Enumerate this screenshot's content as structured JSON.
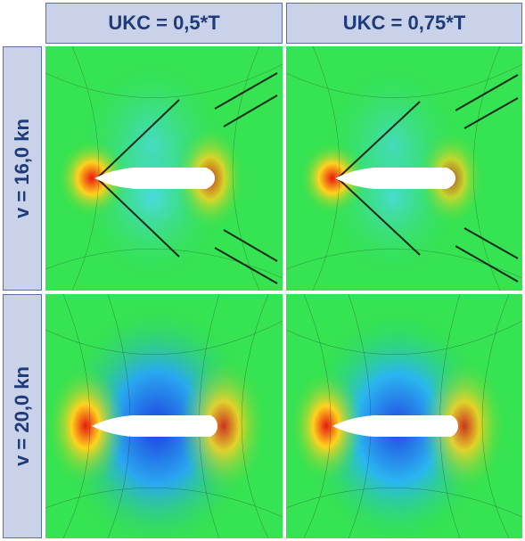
{
  "columns": [
    {
      "label": "UKC = 0,5*T"
    },
    {
      "label": "UKC = 0,75*T"
    }
  ],
  "rows": [
    {
      "label": "v = 16,0 kn"
    },
    {
      "label": "v = 20,0 kn"
    }
  ],
  "panels": [
    {
      "speed": "v = 16,0 kn",
      "ukc": "UKC = 0,5*T"
    },
    {
      "speed": "v = 16,0 kn",
      "ukc": "UKC = 0,75*T"
    },
    {
      "speed": "v = 20,0 kn",
      "ukc": "UKC = 0,5*T"
    },
    {
      "speed": "v = 20,0 kn",
      "ukc": "UKC = 0,75*T"
    }
  ],
  "colors": {
    "header_bg": "#c9d2e8",
    "header_text": "#1f3b7a",
    "field_green": "#2fe04a",
    "trough_blue": "#1d3fe0",
    "crest_red": "#e81a10",
    "hull": "#ffffff"
  }
}
